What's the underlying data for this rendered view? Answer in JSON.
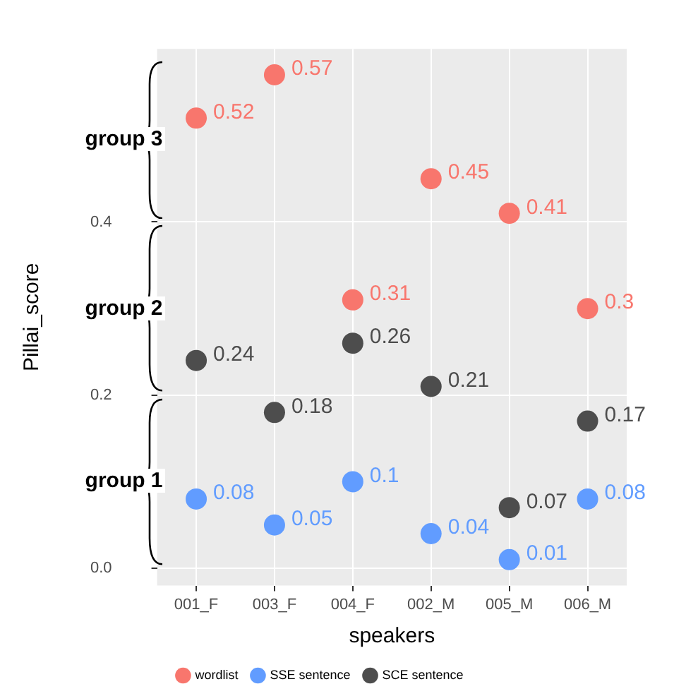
{
  "chart_data": {
    "type": "scatter",
    "xlabel": "speakers",
    "ylabel": "Pillai_score",
    "categories": [
      "001_F",
      "003_F",
      "004_F",
      "002_M",
      "005_M",
      "006_M"
    ],
    "series": [
      {
        "name": "wordlist",
        "color": "#f8766d",
        "values": [
          0.52,
          0.57,
          0.31,
          0.45,
          0.41,
          0.3
        ]
      },
      {
        "name": "SSE sentence",
        "color": "#619cff",
        "values": [
          0.08,
          0.05,
          0.1,
          0.04,
          0.01,
          0.08
        ]
      },
      {
        "name": "SCE sentence",
        "color": "#4d4d4d",
        "values": [
          0.24,
          0.18,
          0.26,
          0.21,
          0.07,
          0.17
        ]
      }
    ],
    "ylim": [
      -0.02,
      0.6
    ],
    "yticks": [
      {
        "value": 0,
        "label": "0.0"
      },
      {
        "value": 0.2,
        "label": "0.2"
      },
      {
        "value": 0.4,
        "label": "0.4"
      }
    ],
    "grid": true,
    "legend": "bottom",
    "marker": "circle",
    "data_labels": true,
    "annotations": [
      "group 3",
      "group 2",
      "group 1"
    ]
  }
}
